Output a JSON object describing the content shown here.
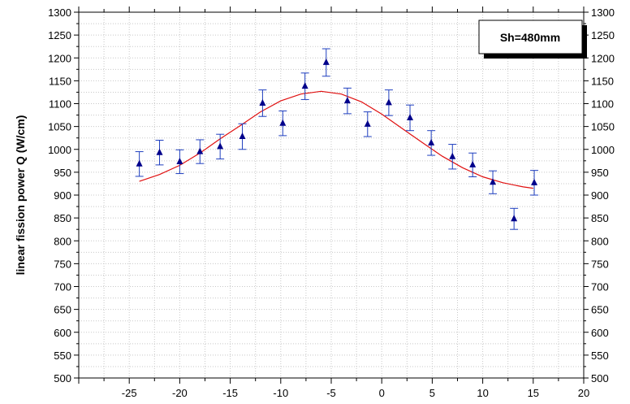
{
  "chart_data": {
    "type": "scatter",
    "title": "",
    "xlabel": "",
    "ylabel": "linear fission power Q (W/cm)",
    "xlim": [
      -30,
      20
    ],
    "ylim": [
      500,
      1300
    ],
    "x_ticks": [
      -25,
      -20,
      -15,
      -10,
      -5,
      0,
      5,
      10,
      15,
      20
    ],
    "y_ticks": [
      500,
      550,
      600,
      650,
      700,
      750,
      800,
      850,
      900,
      950,
      1000,
      1050,
      1100,
      1150,
      1200,
      1250,
      1300
    ],
    "grid": true,
    "legend_box": {
      "text": "Sh=480mm",
      "placement": "top-right"
    },
    "colors": {
      "points": "#00008b",
      "errorbars": "#1f3fbf",
      "fit": "#e01010",
      "grid": "#c8c8c8"
    },
    "series": [
      {
        "kind": "points-with-errorbars",
        "marker": "triangle",
        "points": [
          {
            "x": -24,
            "y": 968,
            "err": 27
          },
          {
            "x": -22,
            "y": 993,
            "err": 27
          },
          {
            "x": -20,
            "y": 973,
            "err": 26
          },
          {
            "x": -18,
            "y": 995,
            "err": 26
          },
          {
            "x": -16,
            "y": 1006,
            "err": 27
          },
          {
            "x": -13.8,
            "y": 1028,
            "err": 28
          },
          {
            "x": -11.8,
            "y": 1101,
            "err": 29
          },
          {
            "x": -9.8,
            "y": 1057,
            "err": 27
          },
          {
            "x": -7.6,
            "y": 1138,
            "err": 29
          },
          {
            "x": -5.5,
            "y": 1190,
            "err": 30
          },
          {
            "x": -3.4,
            "y": 1106,
            "err": 28
          },
          {
            "x": -1.4,
            "y": 1055,
            "err": 27
          },
          {
            "x": 0.7,
            "y": 1102,
            "err": 28
          },
          {
            "x": 2.8,
            "y": 1069,
            "err": 28
          },
          {
            "x": 4.9,
            "y": 1014,
            "err": 27
          },
          {
            "x": 7,
            "y": 984,
            "err": 27
          },
          {
            "x": 9,
            "y": 966,
            "err": 26
          },
          {
            "x": 11,
            "y": 928,
            "err": 25
          },
          {
            "x": 13.1,
            "y": 848,
            "err": 23
          },
          {
            "x": 15.1,
            "y": 927,
            "err": 27
          }
        ]
      },
      {
        "kind": "fit-line",
        "x": [
          -24,
          -22,
          -20,
          -18,
          -16,
          -14,
          -12,
          -10,
          -8,
          -6,
          -4,
          -2,
          0,
          2,
          4,
          6,
          8,
          10,
          12,
          14,
          15
        ],
        "y": [
          930,
          945,
          965,
          992,
          1023,
          1052,
          1082,
          1106,
          1121,
          1127,
          1121,
          1104,
          1077,
          1046,
          1015,
          985,
          960,
          940,
          927,
          918,
          915
        ]
      }
    ]
  }
}
